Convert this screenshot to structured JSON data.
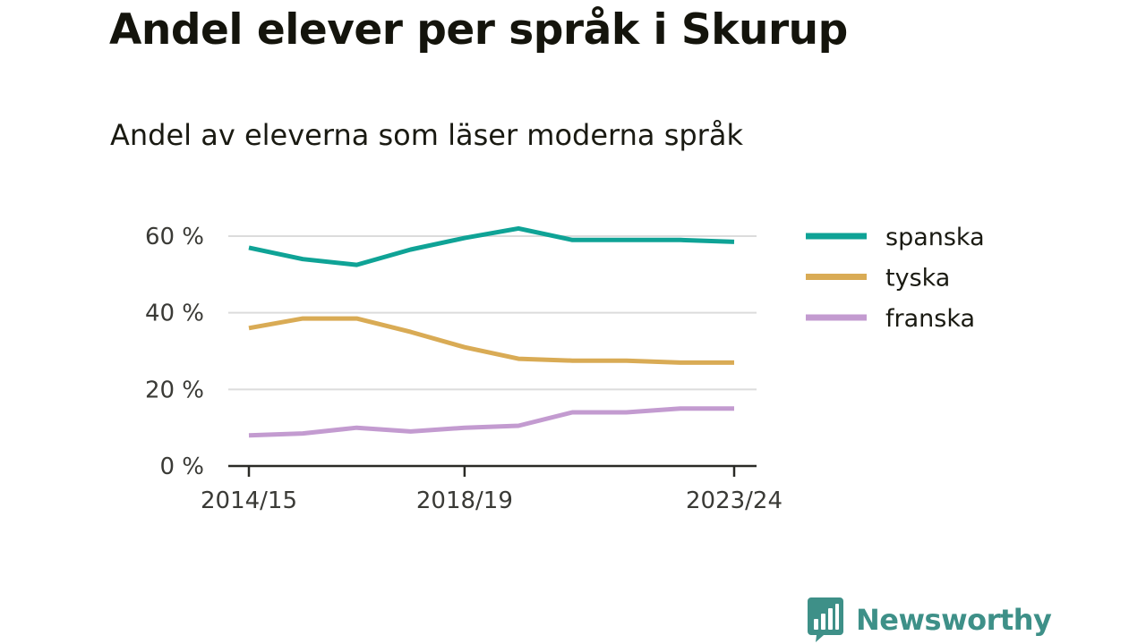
{
  "title": "Andel elever per språk i Skurup",
  "subtitle": "Andel av eleverna som läser moderna språk",
  "brand": {
    "name": "Newsworthy",
    "icon": "bar-chart-speech-bubble-icon",
    "color": "#3e9088"
  },
  "chart_data": {
    "type": "line",
    "x": [
      "2014/15",
      "2015/16",
      "2016/17",
      "2017/18",
      "2018/19",
      "2019/20",
      "2020/21",
      "2021/22",
      "2022/23",
      "2023/24"
    ],
    "x_tick_labels": [
      "2014/15",
      "2018/19",
      "2023/24"
    ],
    "y_ticks": [
      0,
      20,
      40,
      60
    ],
    "y_tick_labels": [
      "0 %",
      "20 %",
      "40 %",
      "60 %"
    ],
    "ylim": [
      0,
      60
    ],
    "grid": true,
    "legend_position": "right",
    "series": [
      {
        "name": "spanska",
        "color": "#0fa396",
        "values": [
          57,
          54,
          52.5,
          56.5,
          59.5,
          62,
          59,
          59,
          59,
          58.5
        ]
      },
      {
        "name": "tyska",
        "color": "#d9ab55",
        "values": [
          36,
          38.5,
          38.5,
          35,
          31,
          28,
          27.5,
          27.5,
          27,
          27
        ]
      },
      {
        "name": "franska",
        "color": "#c39bd0",
        "values": [
          8,
          8.5,
          10,
          9,
          10,
          10.5,
          14,
          14,
          15,
          15
        ]
      }
    ]
  }
}
